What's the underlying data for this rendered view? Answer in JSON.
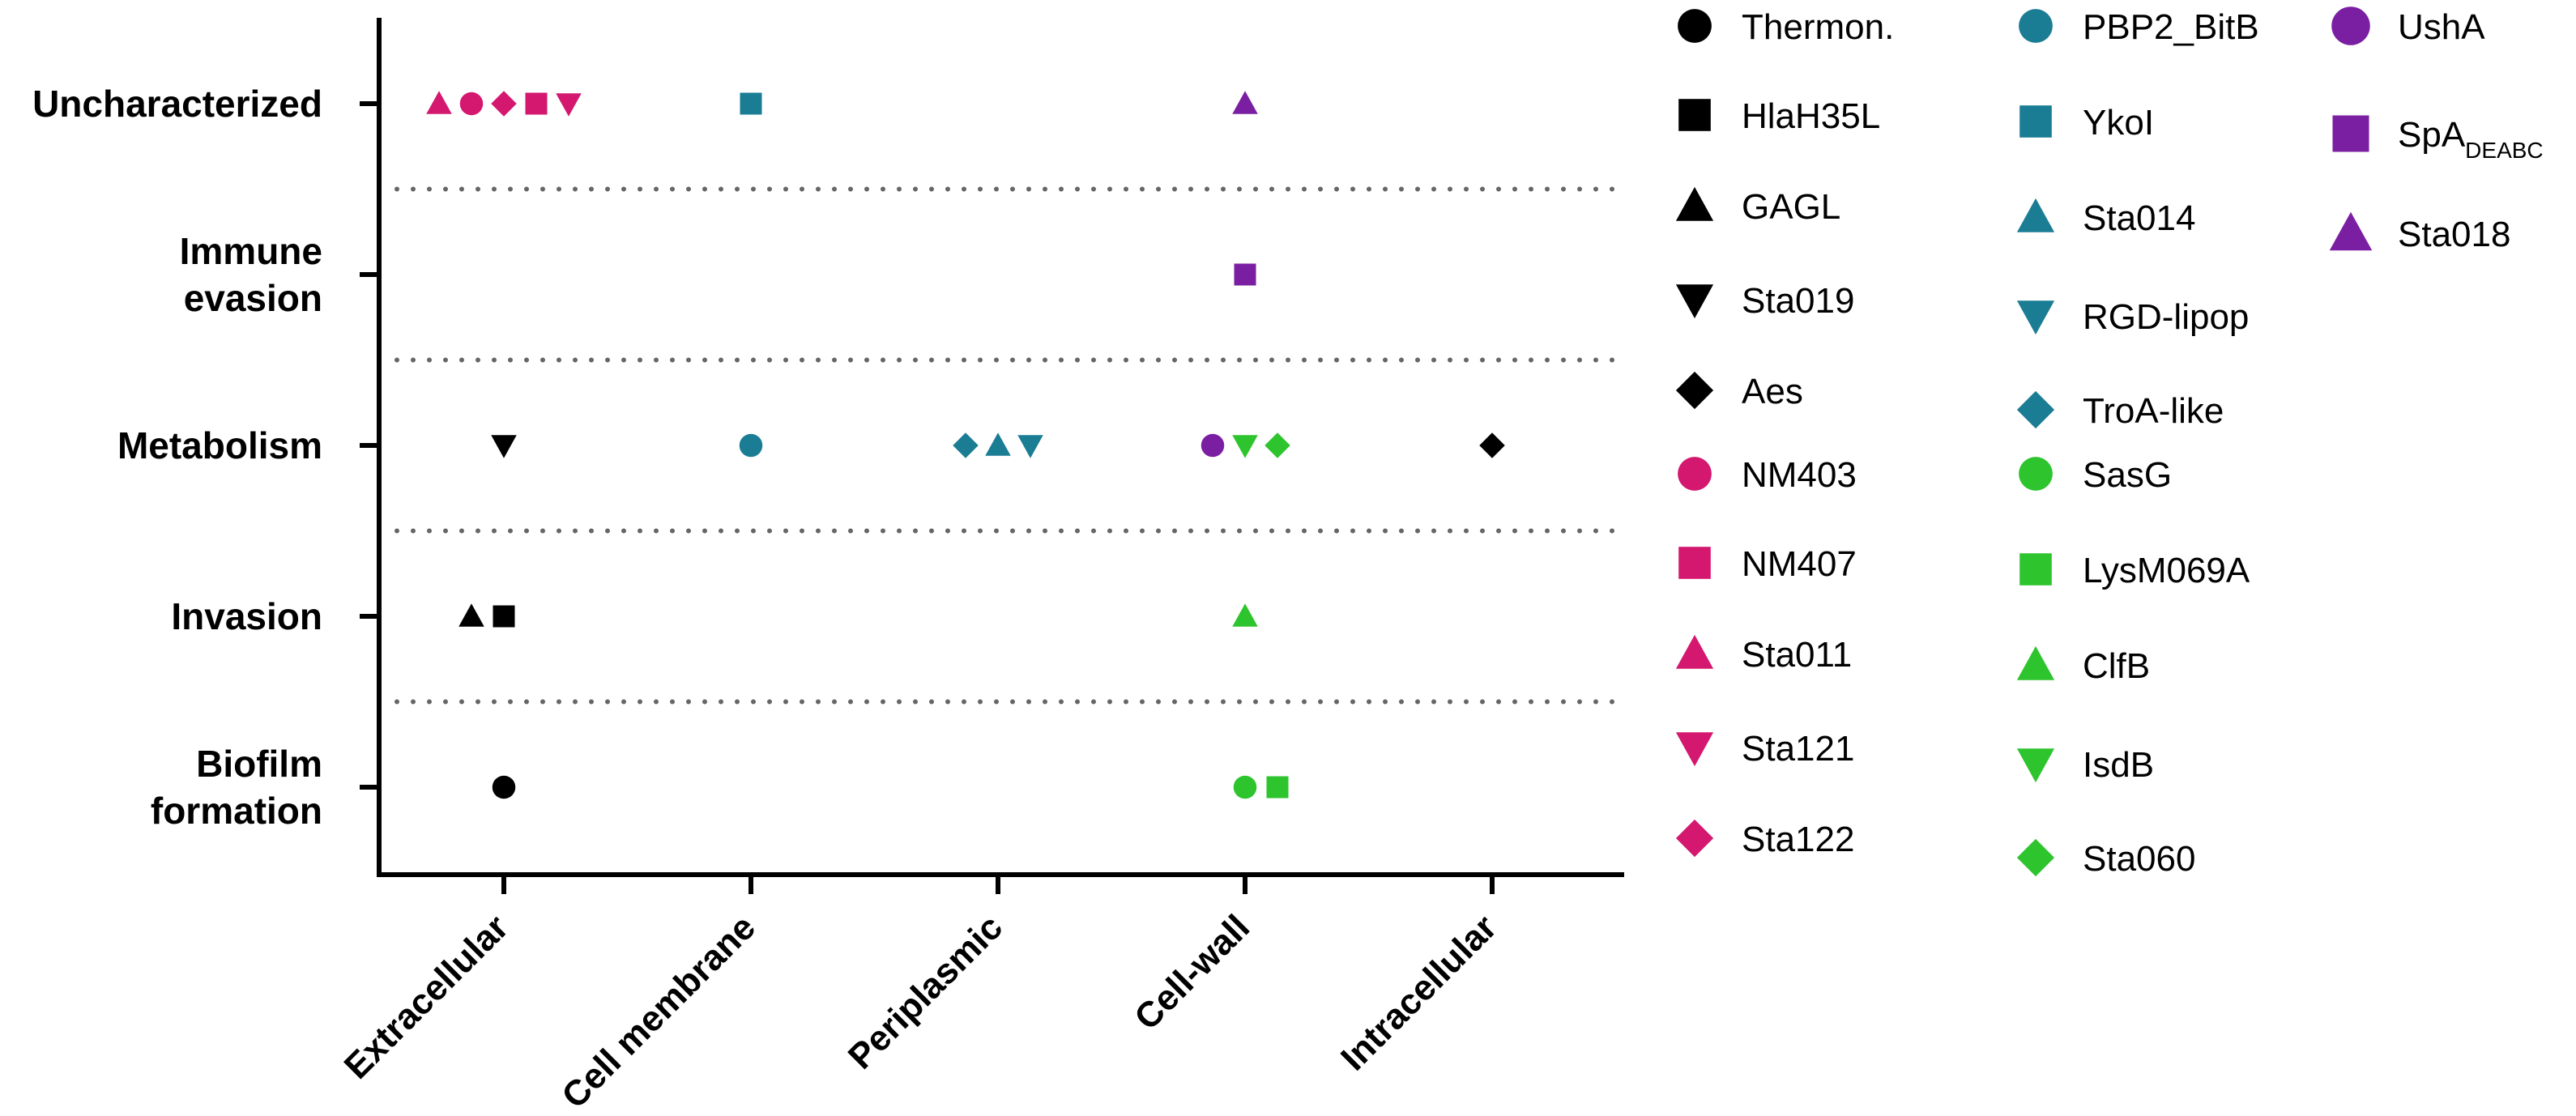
{
  "chart_data": {
    "type": "scatter",
    "title": "",
    "xlabel": "",
    "ylabel": "",
    "grid": "dotted horizontal separators between categories",
    "legend": "right",
    "x_categories": [
      "Extracellular",
      "Cell membrane",
      "Periplasmic",
      "Cell-wall",
      "Intracellular"
    ],
    "y_categories": [
      {
        "key": "biofilm",
        "lines": [
          "Biofilm",
          "formation"
        ]
      },
      {
        "key": "invasion",
        "lines": [
          "Invasion"
        ]
      },
      {
        "key": "metabolism",
        "lines": [
          "Metabolism"
        ]
      },
      {
        "key": "immune",
        "lines": [
          "Immune",
          "evasion"
        ]
      },
      {
        "key": "unchar",
        "lines": [
          "Uncharacterized"
        ]
      }
    ],
    "colors": {
      "black": "#000000",
      "teal": "#1a7d94",
      "purple": "#7b1fa2",
      "magenta": "#d4176f",
      "green": "#2ec42e"
    },
    "points": [
      {
        "name": "Thermon.",
        "x": "Extracellular",
        "y": "biofilm",
        "offset": 0
      },
      {
        "name": "GAGL",
        "x": "Extracellular",
        "y": "invasion",
        "offset": -1
      },
      {
        "name": "HlaH35L",
        "x": "Extracellular",
        "y": "invasion",
        "offset": 0
      },
      {
        "name": "Sta019",
        "x": "Extracellular",
        "y": "metabolism",
        "offset": 0
      },
      {
        "name": "Sta011",
        "x": "Extracellular",
        "y": "unchar",
        "offset": -2
      },
      {
        "name": "NM403",
        "x": "Extracellular",
        "y": "unchar",
        "offset": -1
      },
      {
        "name": "Sta122",
        "x": "Extracellular",
        "y": "unchar",
        "offset": 0
      },
      {
        "name": "NM407",
        "x": "Extracellular",
        "y": "unchar",
        "offset": 1
      },
      {
        "name": "Sta121",
        "x": "Extracellular",
        "y": "unchar",
        "offset": 2
      },
      {
        "name": "PBP2_BitB",
        "x": "Cell membrane",
        "y": "metabolism",
        "offset": 0
      },
      {
        "name": "YkoI",
        "x": "Cell membrane",
        "y": "unchar",
        "offset": 0
      },
      {
        "name": "TroA-like",
        "x": "Periplasmic",
        "y": "metabolism",
        "offset": -1
      },
      {
        "name": "Sta014",
        "x": "Periplasmic",
        "y": "metabolism",
        "offset": 0
      },
      {
        "name": "RGD-lipop",
        "x": "Periplasmic",
        "y": "metabolism",
        "offset": 1
      },
      {
        "name": "SasG",
        "x": "Cell-wall",
        "y": "biofilm",
        "offset": 0
      },
      {
        "name": "LysM069A",
        "x": "Cell-wall",
        "y": "biofilm",
        "offset": 1
      },
      {
        "name": "ClfB",
        "x": "Cell-wall",
        "y": "invasion",
        "offset": 0
      },
      {
        "name": "UshA",
        "x": "Cell-wall",
        "y": "metabolism",
        "offset": -1
      },
      {
        "name": "IsdB",
        "x": "Cell-wall",
        "y": "metabolism",
        "offset": 0
      },
      {
        "name": "Sta060",
        "x": "Cell-wall",
        "y": "metabolism",
        "offset": 1
      },
      {
        "name": "SpA_DEABC",
        "x": "Cell-wall",
        "y": "immune",
        "offset": 0
      },
      {
        "name": "Sta018",
        "x": "Cell-wall",
        "y": "unchar",
        "offset": 0
      },
      {
        "name": "Aes",
        "x": "Intracellular",
        "y": "metabolism",
        "offset": 0
      }
    ],
    "legend_columns": [
      [
        {
          "id": "Thermon.",
          "label": "Thermon.",
          "shape": "circle",
          "color": "black"
        },
        {
          "id": "HlaH35L",
          "label": "HlaH35L",
          "shape": "square",
          "color": "black"
        },
        {
          "id": "GAGL",
          "label": "GAGL",
          "shape": "triangle-up",
          "color": "black"
        },
        {
          "id": "Sta019",
          "label": "Sta019",
          "shape": "triangle-down",
          "color": "black"
        },
        {
          "id": "Aes",
          "label": "Aes",
          "shape": "diamond",
          "color": "black"
        },
        {
          "id": "NM403",
          "label": "NM403",
          "shape": "circle",
          "color": "magenta"
        },
        {
          "id": "NM407",
          "label": "NM407",
          "shape": "square",
          "color": "magenta"
        },
        {
          "id": "Sta011",
          "label": "Sta011",
          "shape": "triangle-up",
          "color": "magenta"
        },
        {
          "id": "Sta121",
          "label": "Sta121",
          "shape": "triangle-down",
          "color": "magenta"
        },
        {
          "id": "Sta122",
          "label": "Sta122",
          "shape": "diamond",
          "color": "magenta"
        }
      ],
      [
        {
          "id": "PBP2_BitB",
          "label": "PBP2_BitB",
          "shape": "circle",
          "color": "teal"
        },
        {
          "id": "YkoI",
          "label": "YkoI",
          "shape": "square",
          "color": "teal"
        },
        {
          "id": "Sta014",
          "label": "Sta014",
          "shape": "triangle-up",
          "color": "teal"
        },
        {
          "id": "RGD-lipop",
          "label": "RGD-lipop",
          "shape": "triangle-down",
          "color": "teal"
        },
        {
          "id": "TroA-like",
          "label": "TroA-like",
          "shape": "diamond",
          "color": "teal"
        },
        {
          "id": "SasG",
          "label": "SasG",
          "shape": "circle",
          "color": "green"
        },
        {
          "id": "LysM069A",
          "label": "LysM069A",
          "shape": "square",
          "color": "green"
        },
        {
          "id": "ClfB",
          "label": "ClfB",
          "shape": "triangle-up",
          "color": "green"
        },
        {
          "id": "IsdB",
          "label": "IsdB",
          "shape": "triangle-down",
          "color": "green"
        },
        {
          "id": "Sta060",
          "label": "Sta060",
          "shape": "diamond",
          "color": "green"
        }
      ],
      [
        {
          "id": "UshA",
          "label": "UshA",
          "shape": "circle",
          "color": "purple"
        },
        {
          "id": "SpA_DEABC",
          "label": "SpA",
          "sub": "DEABC",
          "shape": "square",
          "color": "purple"
        },
        {
          "id": "Sta018",
          "label": "Sta018",
          "shape": "triangle-up",
          "color": "purple"
        }
      ]
    ]
  }
}
